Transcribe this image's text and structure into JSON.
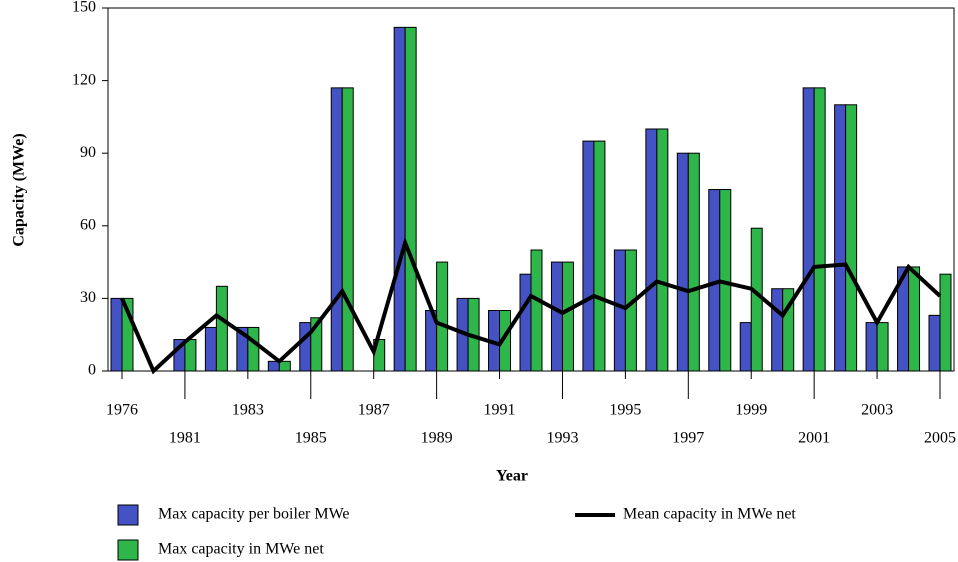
{
  "chart_data": {
    "type": "bar",
    "x_label": "Year",
    "y_label": "Capacity (MWe)",
    "categories": [
      "1976",
      null,
      "1981",
      null,
      "1983",
      null,
      "1985",
      null,
      "1987",
      null,
      "1989",
      null,
      "1991",
      null,
      "1993",
      null,
      "1995",
      null,
      "1997",
      null,
      "1999",
      null,
      "2001",
      null,
      "2003",
      null,
      "2005"
    ],
    "series": [
      {
        "name": "Max capacity per boiler MWe",
        "color": "#4552c4",
        "type": "bar",
        "values": [
          30,
          null,
          13,
          18,
          18,
          4,
          20,
          117,
          null,
          142,
          25,
          30,
          25,
          40,
          45,
          95,
          50,
          100,
          90,
          75,
          20,
          34,
          117,
          110,
          20,
          43,
          23
        ]
      },
      {
        "name": "Max capacity in MWe net",
        "color": "#2eb64a",
        "type": "bar",
        "values": [
          30,
          null,
          13,
          35,
          18,
          4,
          22,
          117,
          13,
          142,
          45,
          30,
          25,
          50,
          45,
          95,
          50,
          100,
          90,
          75,
          59,
          34,
          117,
          110,
          20,
          43,
          40
        ]
      },
      {
        "name": "Mean capacity in MWe net",
        "color": "#000000",
        "type": "line",
        "values": [
          30,
          0,
          12,
          23,
          14,
          4,
          16,
          33,
          8,
          53,
          20,
          15,
          11,
          31,
          24,
          31,
          26,
          37,
          33,
          37,
          34,
          23,
          43,
          44,
          20,
          43,
          31
        ]
      }
    ],
    "ylim": [
      0,
      150
    ],
    "yticks": [
      0,
      30,
      60,
      90,
      120,
      150
    ]
  }
}
